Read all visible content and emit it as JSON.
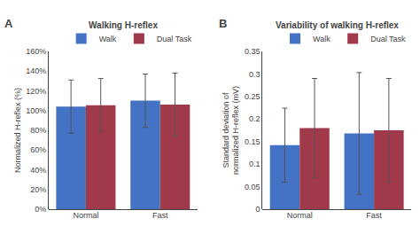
{
  "chart_data": [
    {
      "type": "bar",
      "title": "Walking H-reflex",
      "ylabel": "Normalized H-reflex (%)",
      "annotations": [
        "A"
      ],
      "categories": [
        "Normal",
        "Fast"
      ],
      "series": [
        {
          "name": "Walk",
          "color": "#4472C4",
          "values": [
            1.04,
            1.1
          ],
          "errors": [
            0.27,
            0.27
          ]
        },
        {
          "name": "Dual Task",
          "color": "#A0394A",
          "values": [
            1.055,
            1.06
          ],
          "errors": [
            0.27,
            0.32
          ]
        }
      ],
      "ylim": [
        0,
        1.6
      ],
      "yticks": [
        {
          "value": 0.0,
          "label": "0%"
        },
        {
          "value": 0.2,
          "label": "20%"
        },
        {
          "value": 0.4,
          "label": "40%"
        },
        {
          "value": 0.6,
          "label": "60%"
        },
        {
          "value": 0.8,
          "label": "80%"
        },
        {
          "value": 1.0,
          "label": "100%"
        },
        {
          "value": 1.2,
          "label": "120%"
        },
        {
          "value": 1.4,
          "label": "140%"
        },
        {
          "value": 1.6,
          "label": "160%"
        }
      ],
      "grid": false,
      "legend": "upper right"
    },
    {
      "type": "bar",
      "title": "Variability of walking H-reflex",
      "ylabel": "Standard deviation of\nnormalized H-reflex (mV)",
      "annotations": [
        "B"
      ],
      "categories": [
        "Normal",
        "Fast"
      ],
      "series": [
        {
          "name": "Walk",
          "color": "#4472C4",
          "values": [
            0.142,
            0.168
          ],
          "errors": [
            0.082,
            0.135
          ]
        },
        {
          "name": "Dual Task",
          "color": "#A0394A",
          "values": [
            0.18,
            0.175
          ],
          "errors": [
            0.11,
            0.115
          ]
        }
      ],
      "ylim": [
        0,
        0.35
      ],
      "yticks": [
        0,
        0.05,
        0.1,
        0.15,
        0.2,
        0.25,
        0.3,
        0.35
      ],
      "grid": false,
      "legend": "upper right"
    }
  ]
}
